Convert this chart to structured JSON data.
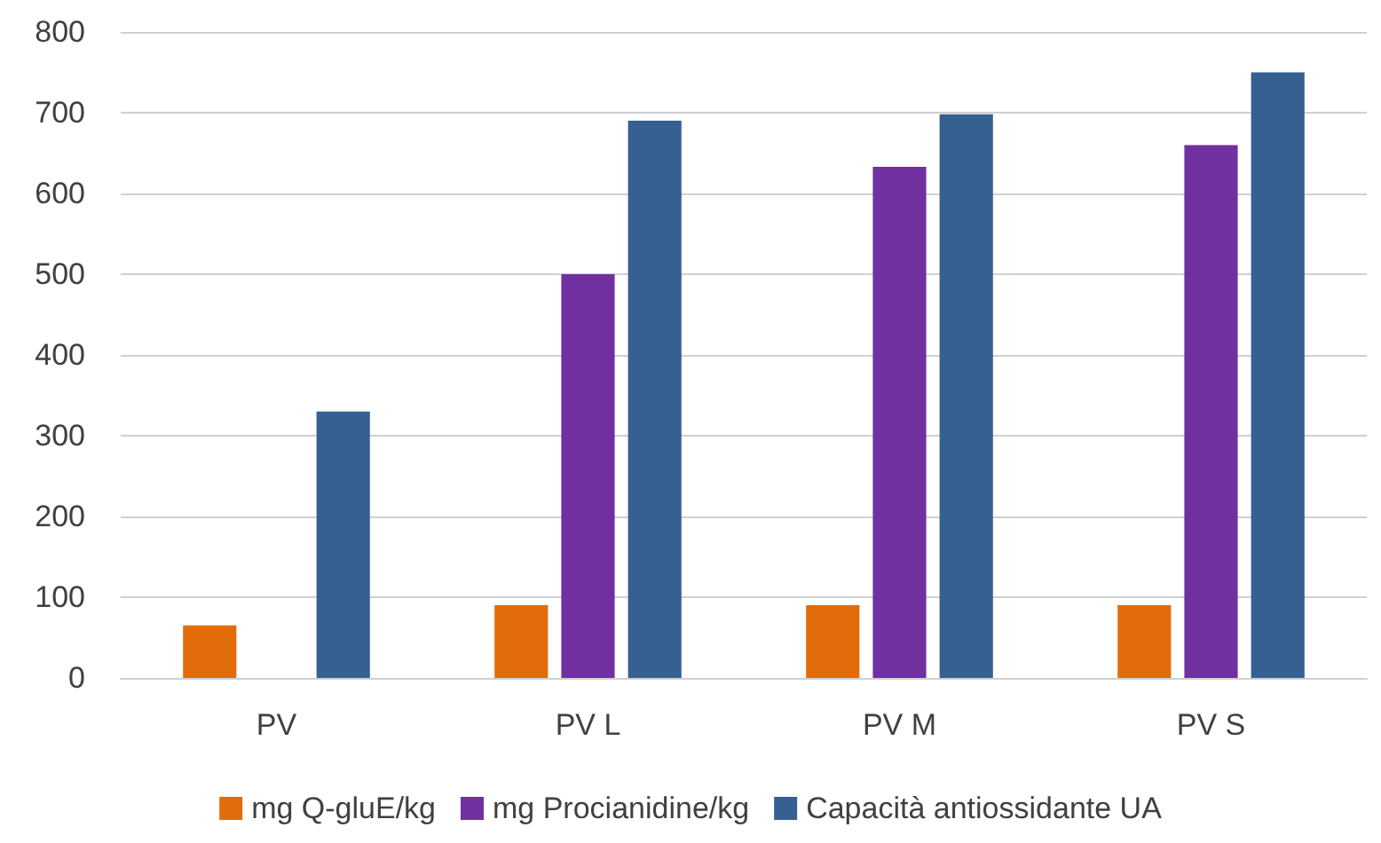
{
  "chart_data": {
    "type": "bar",
    "categories": [
      "PV",
      "PV L",
      "PV M",
      "PV S"
    ],
    "series": [
      {
        "name": "mg Q-gluE/kg",
        "color": "#e36c0a",
        "values": [
          65,
          90,
          90,
          90
        ]
      },
      {
        "name": "mg Procianidine/kg",
        "color": "#7030a0",
        "values": [
          null,
          500,
          633,
          660
        ]
      },
      {
        "name": "Capacità antiossidante UA",
        "color": "#366092",
        "values": [
          330,
          690,
          698,
          750
        ]
      }
    ],
    "ylim": [
      0,
      800
    ],
    "yticks": [
      0,
      100,
      200,
      300,
      400,
      500,
      600,
      700,
      800
    ],
    "grid": "y",
    "legend": "bottom"
  }
}
